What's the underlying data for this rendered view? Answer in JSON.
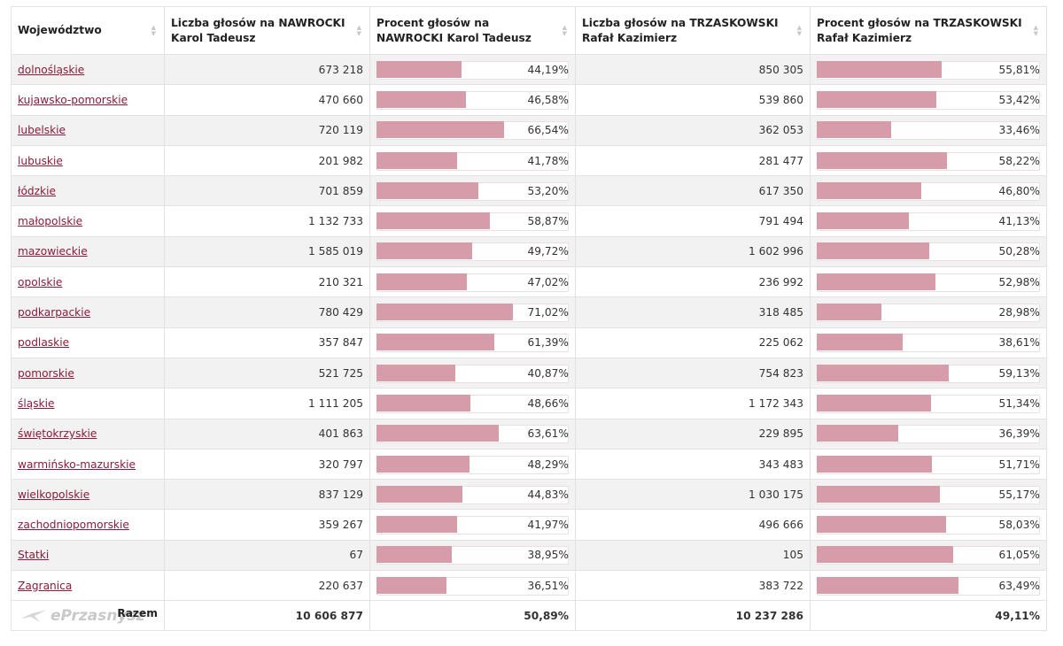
{
  "headers": [
    {
      "label": "Województwo"
    },
    {
      "label": "Liczba głosów na NAWROCKI Karol Tadeusz"
    },
    {
      "label": "Procent głosów na NAWROCKI Karol Tadeusz"
    },
    {
      "label": "Liczba głosów na TRZASKOWSKI Rafał Kazimierz"
    },
    {
      "label": "Procent głosów na TRZASKOWSKI Rafał Kazimierz"
    }
  ],
  "bar_color": "#d79caa",
  "link_color": "#8a1b3a",
  "rows": [
    {
      "name": "dolnośląskie",
      "n_votes": "673 218",
      "n_pct": "44,19%",
      "n_val": 44.19,
      "t_votes": "850 305",
      "t_pct": "55,81%",
      "t_val": 55.81
    },
    {
      "name": "kujawsko-pomorskie",
      "n_votes": "470 660",
      "n_pct": "46,58%",
      "n_val": 46.58,
      "t_votes": "539 860",
      "t_pct": "53,42%",
      "t_val": 53.42
    },
    {
      "name": "lubelskie",
      "n_votes": "720 119",
      "n_pct": "66,54%",
      "n_val": 66.54,
      "t_votes": "362 053",
      "t_pct": "33,46%",
      "t_val": 33.46
    },
    {
      "name": "lubuskie",
      "n_votes": "201 982",
      "n_pct": "41,78%",
      "n_val": 41.78,
      "t_votes": "281 477",
      "t_pct": "58,22%",
      "t_val": 58.22
    },
    {
      "name": "łódzkie",
      "n_votes": "701 859",
      "n_pct": "53,20%",
      "n_val": 53.2,
      "t_votes": "617 350",
      "t_pct": "46,80%",
      "t_val": 46.8
    },
    {
      "name": "małopolskie",
      "n_votes": "1 132 733",
      "n_pct": "58,87%",
      "n_val": 58.87,
      "t_votes": "791 494",
      "t_pct": "41,13%",
      "t_val": 41.13
    },
    {
      "name": "mazowieckie",
      "n_votes": "1 585 019",
      "n_pct": "49,72%",
      "n_val": 49.72,
      "t_votes": "1 602 996",
      "t_pct": "50,28%",
      "t_val": 50.28
    },
    {
      "name": "opolskie",
      "n_votes": "210 321",
      "n_pct": "47,02%",
      "n_val": 47.02,
      "t_votes": "236 992",
      "t_pct": "52,98%",
      "t_val": 52.98
    },
    {
      "name": "podkarpackie",
      "n_votes": "780 429",
      "n_pct": "71,02%",
      "n_val": 71.02,
      "t_votes": "318 485",
      "t_pct": "28,98%",
      "t_val": 28.98
    },
    {
      "name": "podlaskie",
      "n_votes": "357 847",
      "n_pct": "61,39%",
      "n_val": 61.39,
      "t_votes": "225 062",
      "t_pct": "38,61%",
      "t_val": 38.61
    },
    {
      "name": "pomorskie",
      "n_votes": "521 725",
      "n_pct": "40,87%",
      "n_val": 40.87,
      "t_votes": "754 823",
      "t_pct": "59,13%",
      "t_val": 59.13
    },
    {
      "name": "śląskie",
      "n_votes": "1 111 205",
      "n_pct": "48,66%",
      "n_val": 48.66,
      "t_votes": "1 172 343",
      "t_pct": "51,34%",
      "t_val": 51.34
    },
    {
      "name": "świętokrzyskie",
      "n_votes": "401 863",
      "n_pct": "63,61%",
      "n_val": 63.61,
      "t_votes": "229 895",
      "t_pct": "36,39%",
      "t_val": 36.39
    },
    {
      "name": "warmińsko-mazurskie",
      "n_votes": "320 797",
      "n_pct": "48,29%",
      "n_val": 48.29,
      "t_votes": "343 483",
      "t_pct": "51,71%",
      "t_val": 51.71
    },
    {
      "name": "wielkopolskie",
      "n_votes": "837 129",
      "n_pct": "44,83%",
      "n_val": 44.83,
      "t_votes": "1 030 175",
      "t_pct": "55,17%",
      "t_val": 55.17
    },
    {
      "name": "zachodniopomorskie",
      "n_votes": "359 267",
      "n_pct": "41,97%",
      "n_val": 41.97,
      "t_votes": "496 666",
      "t_pct": "58,03%",
      "t_val": 58.03
    },
    {
      "name": "Statki",
      "n_votes": "67",
      "n_pct": "38,95%",
      "n_val": 38.95,
      "t_votes": "105",
      "t_pct": "61,05%",
      "t_val": 61.05
    },
    {
      "name": "Zagranica",
      "n_votes": "220 637",
      "n_pct": "36,51%",
      "n_val": 36.51,
      "t_votes": "383 722",
      "t_pct": "63,49%",
      "t_val": 63.49
    }
  ],
  "footer": {
    "label": "Razem",
    "n_votes": "10 606 877",
    "n_pct": "50,89%",
    "t_votes": "10 237 286",
    "t_pct": "49,11%"
  },
  "watermark": {
    "text": "ePrzasnysz",
    "icon": "logo-icon"
  }
}
